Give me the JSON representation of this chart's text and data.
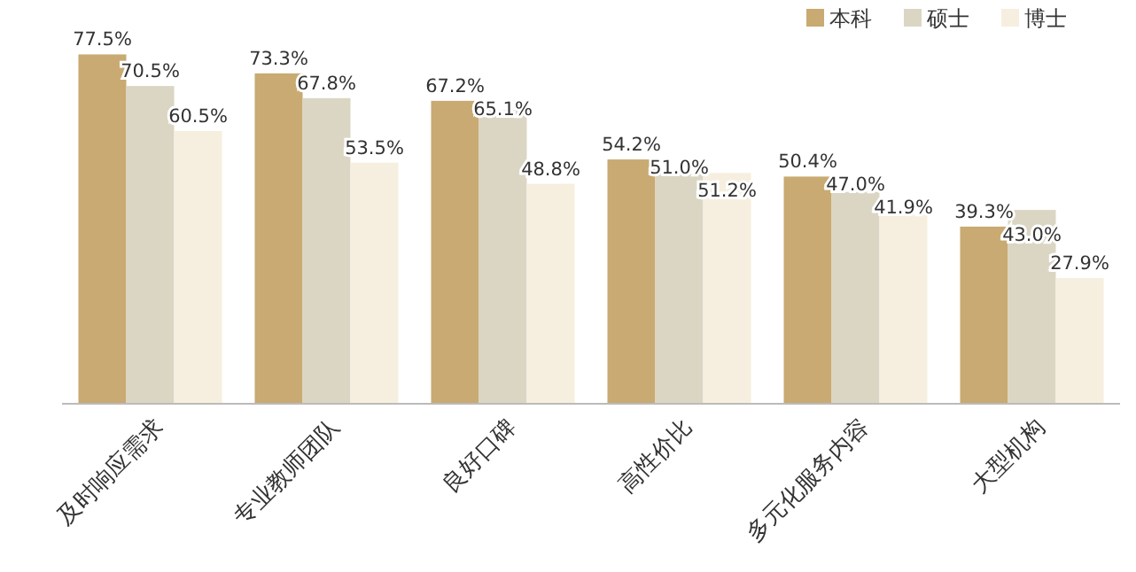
{
  "chart_data": {
    "type": "bar",
    "categories": [
      "及时响应需求",
      "专业教师团队",
      "良好口碑",
      "高性价比",
      "多元化服务内容",
      "大型机构"
    ],
    "series": [
      {
        "name": "本科",
        "color": "#c8aa72",
        "values": [
          77.5,
          73.3,
          67.2,
          54.2,
          50.4,
          39.3
        ],
        "value_labels": [
          "77.5%",
          "73.3%",
          "67.2%",
          "54.2%",
          "50.4%",
          "39.3%"
        ]
      },
      {
        "name": "硕士",
        "color": "#dbd6c4",
        "values": [
          70.5,
          67.8,
          65.1,
          51.0,
          47.0,
          43.0
        ],
        "value_labels": [
          "70.5%",
          "67.8%",
          "65.1%",
          "51.0%",
          "47.0%",
          "43.0%"
        ]
      },
      {
        "name": "博士",
        "color": "#f6efdf",
        "values": [
          60.5,
          53.5,
          48.8,
          51.2,
          41.9,
          27.9
        ],
        "value_labels": [
          "60.5%",
          "53.5%",
          "48.8%",
          "51.2%",
          "41.9%",
          "27.9%"
        ]
      }
    ],
    "legend": "top right",
    "grid": false
  }
}
